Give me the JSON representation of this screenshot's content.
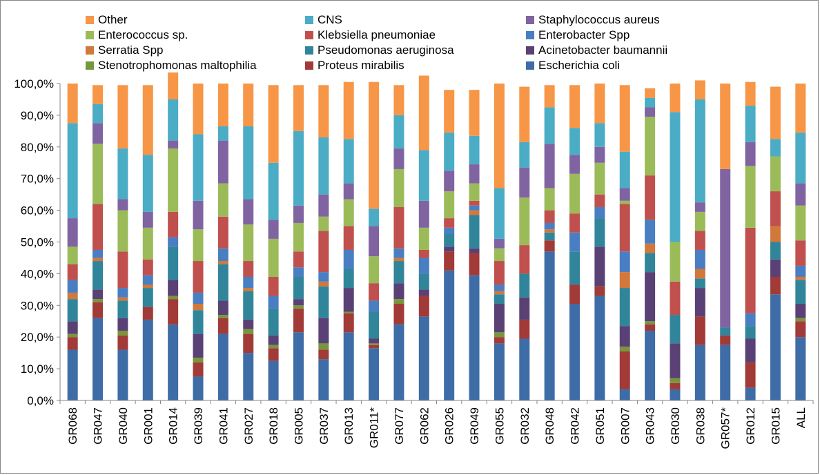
{
  "chart_data": {
    "type": "bar",
    "stacked": true,
    "percent": true,
    "ylim": [
      0,
      100
    ],
    "yticks": [
      "0,0%",
      "10,0%",
      "20,0%",
      "30,0%",
      "40,0%",
      "50,0%",
      "60,0%",
      "70,0%",
      "80,0%",
      "90,0%",
      "100,0%"
    ],
    "gridlines": false,
    "legend_position": "top",
    "categories": [
      "GR068",
      "GR047",
      "GR040",
      "GR001",
      "GR014",
      "GR039",
      "GR041",
      "GR027",
      "GR018",
      "GR005",
      "GR037",
      "GR013",
      "GR011*",
      "GR077",
      "GR062",
      "GR026",
      "GR049",
      "GR055",
      "GR032",
      "GR048",
      "GR042",
      "GR051",
      "GR007",
      "GR043",
      "GR030",
      "GR038",
      "GR057*",
      "GR012",
      "GR015",
      "ALL"
    ],
    "series": [
      {
        "name": "Escherichia coli",
        "color": "#3E6CA6",
        "values": [
          16,
          26,
          16,
          25.5,
          24,
          7.5,
          21,
          15,
          12.5,
          21.5,
          13,
          21.5,
          16.5,
          24,
          26.5,
          41,
          39.5,
          18,
          19.5,
          47,
          30.5,
          33,
          3.5,
          22,
          3.5,
          17.5,
          17.5,
          4,
          33.5,
          20
        ]
      },
      {
        "name": "Proteus mirabilis",
        "color": "#A23A38",
        "values": [
          4,
          5,
          4.5,
          4,
          8,
          4.5,
          5,
          6,
          4,
          7.5,
          3,
          6,
          1,
          6.5,
          6.5,
          6,
          7,
          2,
          6,
          3.5,
          6,
          3,
          12,
          2,
          2,
          9,
          3,
          8,
          5.5,
          5
        ]
      },
      {
        "name": "Stenotrophomonas maltophilia",
        "color": "#78963C",
        "values": [
          1,
          1,
          1.5,
          0,
          1,
          1.5,
          1,
          1.5,
          1,
          1,
          2,
          0.5,
          0.5,
          1.5,
          0,
          0,
          0,
          1.5,
          0,
          0,
          0,
          0,
          1.5,
          1,
          1.5,
          0,
          0,
          0,
          0,
          1
        ]
      },
      {
        "name": "Acinetobacter baumannii",
        "color": "#5A4175",
        "values": [
          4,
          3,
          4,
          0,
          5,
          7.5,
          4.5,
          3,
          3,
          2,
          8,
          7.5,
          1.5,
          5,
          2,
          1.5,
          1.5,
          9,
          7,
          0,
          0,
          12.5,
          6.5,
          15.5,
          11,
          9,
          0,
          7.5,
          5.5,
          4.5
        ]
      },
      {
        "name": "Pseudomonas aeruginosa",
        "color": "#31859B",
        "values": [
          7,
          9,
          5.5,
          6,
          10.5,
          7.5,
          11.5,
          9,
          8.5,
          7,
          10,
          6,
          8.5,
          7,
          5,
          4,
          10.5,
          3,
          7.5,
          2.5,
          10.5,
          9,
          12,
          6,
          9,
          3,
          2.5,
          4,
          5.5,
          7.5
        ]
      },
      {
        "name": "Serratia Spp",
        "color": "#D1783A",
        "values": [
          2,
          1,
          1,
          1,
          0,
          2,
          1,
          1,
          0,
          0,
          1.5,
          0,
          0,
          1,
          0,
          0,
          1.5,
          1,
          0,
          1,
          0,
          0,
          5,
          3,
          0,
          3,
          0,
          0,
          5,
          1
        ]
      },
      {
        "name": "Enterobacter Spp",
        "color": "#4A7EC2",
        "values": [
          4,
          2.5,
          3,
          3,
          3,
          3.5,
          4,
          3.5,
          4,
          3,
          3,
          6,
          3.5,
          3,
          5,
          2,
          1.5,
          2,
          0,
          2,
          6,
          3.5,
          6.5,
          7.5,
          0,
          6,
          0,
          4,
          0,
          3.5
        ]
      },
      {
        "name": "Klebsiella pneumoniae",
        "color": "#C0504D",
        "values": [
          5,
          14.5,
          11.5,
          5,
          8,
          10,
          10,
          5,
          6,
          5,
          13,
          7.5,
          5.5,
          13,
          2.5,
          3,
          1.5,
          7.5,
          9,
          4,
          6,
          4,
          15,
          14,
          10.5,
          6,
          0,
          27,
          11,
          8
        ]
      },
      {
        "name": "Enterococcus sp.",
        "color": "#9BBB59",
        "values": [
          5.5,
          19,
          13,
          10,
          20,
          10,
          10.5,
          11.5,
          12,
          9,
          4.5,
          8.5,
          8.5,
          12,
          7,
          8.5,
          5.5,
          4,
          15,
          7,
          12.5,
          10,
          1,
          18.5,
          12.5,
          6,
          0,
          19.5,
          11,
          11
        ]
      },
      {
        "name": "Staphylococcus aureus",
        "color": "#8064A2",
        "values": [
          9,
          6.5,
          3.5,
          5,
          2.5,
          9,
          13.5,
          8,
          6,
          5.5,
          7,
          5,
          9.5,
          6.5,
          8.5,
          6.5,
          6,
          3,
          9.5,
          14,
          6,
          5,
          4,
          3,
          0,
          3,
          50,
          7.5,
          0,
          7
        ]
      },
      {
        "name": "CNS",
        "color": "#4BACC6",
        "values": [
          30,
          6,
          16,
          18,
          13,
          21,
          4.5,
          23,
          18,
          23.5,
          18,
          14,
          5.5,
          10.5,
          16,
          12,
          9,
          16,
          8,
          11.5,
          8.5,
          7.5,
          11.5,
          3,
          41,
          32.5,
          0,
          11.5,
          5.5,
          16
        ]
      },
      {
        "name": "Other",
        "color": "#F79646",
        "values": [
          12.5,
          6,
          20,
          22,
          8.5,
          16,
          13.5,
          13.5,
          24.5,
          14.5,
          16.5,
          18,
          40,
          9.5,
          23.5,
          13.5,
          14.5,
          33,
          17.5,
          7,
          13.5,
          12.5,
          21,
          3,
          9,
          6,
          27,
          7.5,
          16.5,
          15.5
        ]
      }
    ]
  },
  "legend": [
    {
      "label": "Other",
      "color": "#F79646"
    },
    {
      "label": "CNS",
      "color": "#4BACC6"
    },
    {
      "label": "Staphylococcus aureus",
      "color": "#8064A2"
    },
    {
      "label": "Enterococcus sp.",
      "color": "#9BBB59"
    },
    {
      "label": "Klebsiella pneumoniae",
      "color": "#C0504D"
    },
    {
      "label": "Enterobacter Spp",
      "color": "#4A7EC2"
    },
    {
      "label": "Serratia Spp",
      "color": "#D1783A"
    },
    {
      "label": "Pseudomonas aeruginosa",
      "color": "#31859B"
    },
    {
      "label": "Acinetobacter baumannii",
      "color": "#5A4175"
    },
    {
      "label": "Stenotrophomonas maltophilia",
      "color": "#78963C"
    },
    {
      "label": "Proteus mirabilis",
      "color": "#A23A38"
    },
    {
      "label": "Escherichia coli",
      "color": "#3E6CA6"
    }
  ]
}
